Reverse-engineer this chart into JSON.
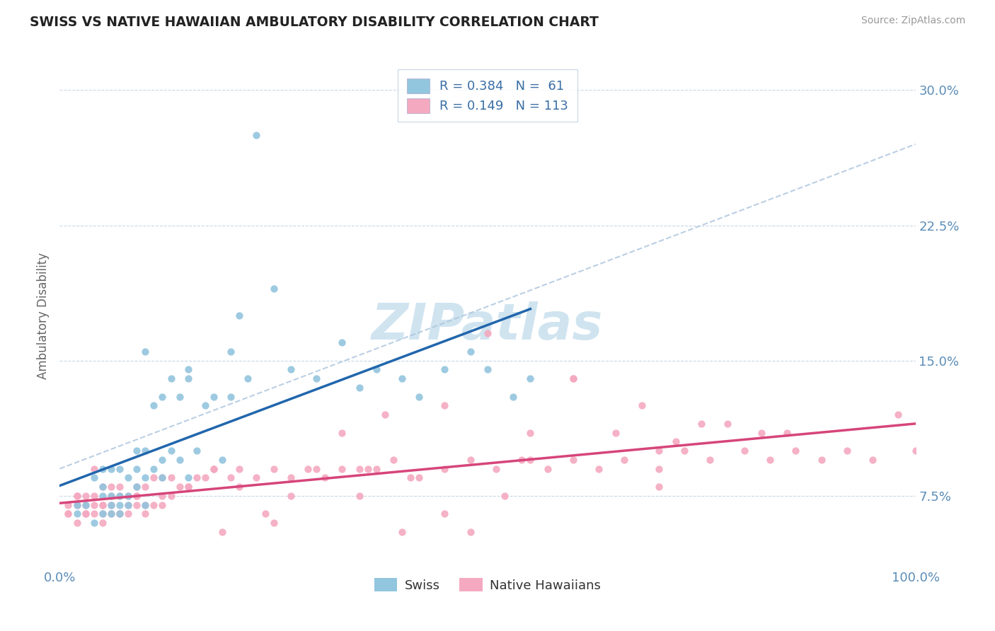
{
  "title": "SWISS VS NATIVE HAWAIIAN AMBULATORY DISABILITY CORRELATION CHART",
  "source": "Source: ZipAtlas.com",
  "ylabel": "Ambulatory Disability",
  "x_min": 0.0,
  "x_max": 1.0,
  "y_min": 0.035,
  "y_max": 0.315,
  "y_ticks": [
    0.075,
    0.15,
    0.225,
    0.3
  ],
  "y_tick_labels": [
    "7.5%",
    "15.0%",
    "22.5%",
    "30.0%"
  ],
  "swiss_R": 0.384,
  "swiss_N": 61,
  "nh_R": 0.149,
  "nh_N": 113,
  "swiss_dot_color": "#92c5de",
  "nh_dot_color": "#f4a9c0",
  "trend_swiss_color": "#2166ac",
  "trend_nh_color": "#d6457a",
  "diag_color": "#aac4dd",
  "background_color": "#ffffff",
  "grid_color": "#c8d8e8",
  "title_color": "#222222",
  "axis_label_color": "#5b8db8",
  "legend_text_color": "#3a6ea5",
  "watermark_color": "#d0e4f0",
  "swiss_scatter_x": [
    0.02,
    0.02,
    0.03,
    0.04,
    0.04,
    0.05,
    0.05,
    0.05,
    0.05,
    0.06,
    0.06,
    0.06,
    0.06,
    0.07,
    0.07,
    0.07,
    0.07,
    0.08,
    0.08,
    0.08,
    0.09,
    0.09,
    0.09,
    0.1,
    0.1,
    0.1,
    0.11,
    0.11,
    0.12,
    0.12,
    0.12,
    0.13,
    0.13,
    0.14,
    0.14,
    0.15,
    0.15,
    0.16,
    0.17,
    0.18,
    0.19,
    0.2,
    0.21,
    0.22,
    0.23,
    0.25,
    0.27,
    0.3,
    0.33,
    0.35,
    0.37,
    0.4,
    0.42,
    0.45,
    0.48,
    0.5,
    0.53,
    0.55,
    0.2,
    0.15,
    0.1
  ],
  "swiss_scatter_y": [
    0.065,
    0.07,
    0.07,
    0.06,
    0.085,
    0.065,
    0.075,
    0.08,
    0.09,
    0.065,
    0.07,
    0.075,
    0.09,
    0.065,
    0.07,
    0.075,
    0.09,
    0.07,
    0.075,
    0.085,
    0.08,
    0.09,
    0.1,
    0.07,
    0.085,
    0.1,
    0.09,
    0.125,
    0.085,
    0.095,
    0.13,
    0.1,
    0.14,
    0.095,
    0.13,
    0.085,
    0.14,
    0.1,
    0.125,
    0.13,
    0.095,
    0.13,
    0.175,
    0.14,
    0.275,
    0.19,
    0.145,
    0.14,
    0.16,
    0.135,
    0.145,
    0.14,
    0.13,
    0.145,
    0.155,
    0.145,
    0.13,
    0.14,
    0.155,
    0.145,
    0.155
  ],
  "nh_scatter_x": [
    0.01,
    0.01,
    0.02,
    0.02,
    0.02,
    0.03,
    0.03,
    0.03,
    0.04,
    0.04,
    0.04,
    0.05,
    0.05,
    0.05,
    0.05,
    0.06,
    0.06,
    0.06,
    0.06,
    0.07,
    0.07,
    0.07,
    0.08,
    0.08,
    0.08,
    0.09,
    0.09,
    0.09,
    0.1,
    0.1,
    0.1,
    0.11,
    0.11,
    0.12,
    0.12,
    0.13,
    0.13,
    0.14,
    0.15,
    0.16,
    0.17,
    0.18,
    0.2,
    0.21,
    0.23,
    0.25,
    0.27,
    0.29,
    0.31,
    0.33,
    0.35,
    0.37,
    0.39,
    0.42,
    0.45,
    0.48,
    0.51,
    0.54,
    0.57,
    0.6,
    0.63,
    0.66,
    0.7,
    0.73,
    0.76,
    0.8,
    0.83,
    0.86,
    0.89,
    0.92,
    0.95,
    0.98,
    1.0,
    0.85,
    0.7,
    0.55,
    0.6,
    0.65,
    0.72,
    0.78,
    0.5,
    0.45,
    0.41,
    0.38,
    0.36,
    0.33,
    0.3,
    0.27,
    0.24,
    0.21,
    0.18,
    0.15,
    0.12,
    0.09,
    0.07,
    0.05,
    0.04,
    0.03,
    0.02,
    0.01,
    0.35,
    0.4,
    0.45,
    0.52,
    0.6,
    0.68,
    0.75,
    0.82,
    0.7,
    0.55,
    0.48,
    0.25,
    0.19
  ],
  "nh_scatter_y": [
    0.065,
    0.07,
    0.06,
    0.07,
    0.075,
    0.065,
    0.07,
    0.075,
    0.065,
    0.07,
    0.075,
    0.06,
    0.065,
    0.07,
    0.08,
    0.065,
    0.07,
    0.075,
    0.08,
    0.065,
    0.075,
    0.08,
    0.065,
    0.07,
    0.075,
    0.07,
    0.075,
    0.08,
    0.065,
    0.07,
    0.08,
    0.07,
    0.085,
    0.075,
    0.085,
    0.075,
    0.085,
    0.08,
    0.08,
    0.085,
    0.085,
    0.09,
    0.085,
    0.09,
    0.085,
    0.09,
    0.085,
    0.09,
    0.085,
    0.09,
    0.09,
    0.09,
    0.095,
    0.085,
    0.09,
    0.095,
    0.09,
    0.095,
    0.09,
    0.095,
    0.09,
    0.095,
    0.09,
    0.1,
    0.095,
    0.1,
    0.095,
    0.1,
    0.095,
    0.1,
    0.095,
    0.12,
    0.1,
    0.11,
    0.1,
    0.11,
    0.14,
    0.11,
    0.105,
    0.115,
    0.165,
    0.125,
    0.085,
    0.12,
    0.09,
    0.11,
    0.09,
    0.075,
    0.065,
    0.08,
    0.09,
    0.08,
    0.07,
    0.075,
    0.065,
    0.07,
    0.09,
    0.065,
    0.075,
    0.065,
    0.075,
    0.055,
    0.065,
    0.075,
    0.14,
    0.125,
    0.115,
    0.11,
    0.08,
    0.095,
    0.055,
    0.06,
    0.055
  ]
}
